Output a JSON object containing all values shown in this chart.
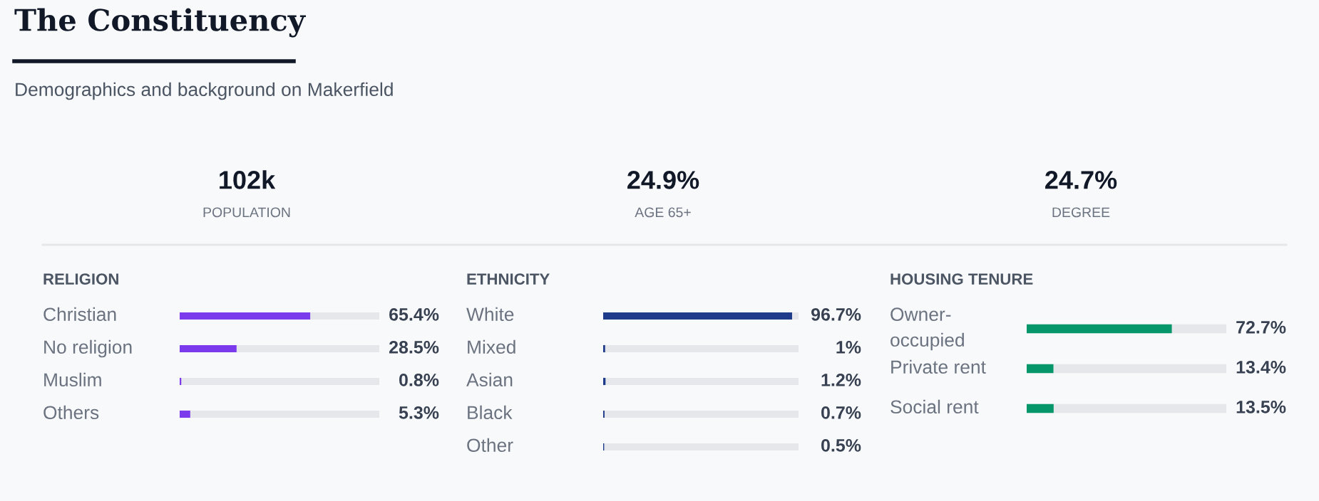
{
  "chart_data": [
    {
      "type": "other",
      "title": "The Constituency",
      "subtitle": "Demographics and background on Makerfield",
      "annotations": [
        "102k",
        "POPULATION",
        "24.9%",
        "AGE 65+",
        "24.7%",
        "DEGREE"
      ]
    },
    {
      "type": "bar",
      "orientation": "horizontal",
      "title": "RELIGION",
      "categories": [
        "Christian",
        "No religion",
        "Muslim",
        "Others"
      ],
      "values": [
        65.4,
        28.5,
        0.8,
        5.3
      ],
      "value_labels": [
        "65.4%",
        "28.5%",
        "0.8%",
        "5.3%"
      ],
      "color": "#7c3aed",
      "xlim": [
        0,
        100
      ]
    },
    {
      "type": "bar",
      "orientation": "horizontal",
      "title": "ETHNICITY",
      "categories": [
        "White",
        "Mixed",
        "Asian",
        "Black",
        "Other"
      ],
      "values": [
        96.7,
        1,
        1.2,
        0.7,
        0.5
      ],
      "value_labels": [
        "96.7%",
        "1%",
        "1.2%",
        "0.7%",
        "0.5%"
      ],
      "color": "#1e3a8a",
      "xlim": [
        0,
        100
      ]
    },
    {
      "type": "bar",
      "orientation": "horizontal",
      "title": "HOUSING TENURE",
      "categories": [
        "Owner-occupied",
        "Private rent",
        "Social rent"
      ],
      "values": [
        72.7,
        13.4,
        13.5
      ],
      "value_labels": [
        "72.7%",
        "13.4%",
        "13.5%"
      ],
      "color": "#059669",
      "xlim": [
        0,
        100
      ]
    }
  ]
}
